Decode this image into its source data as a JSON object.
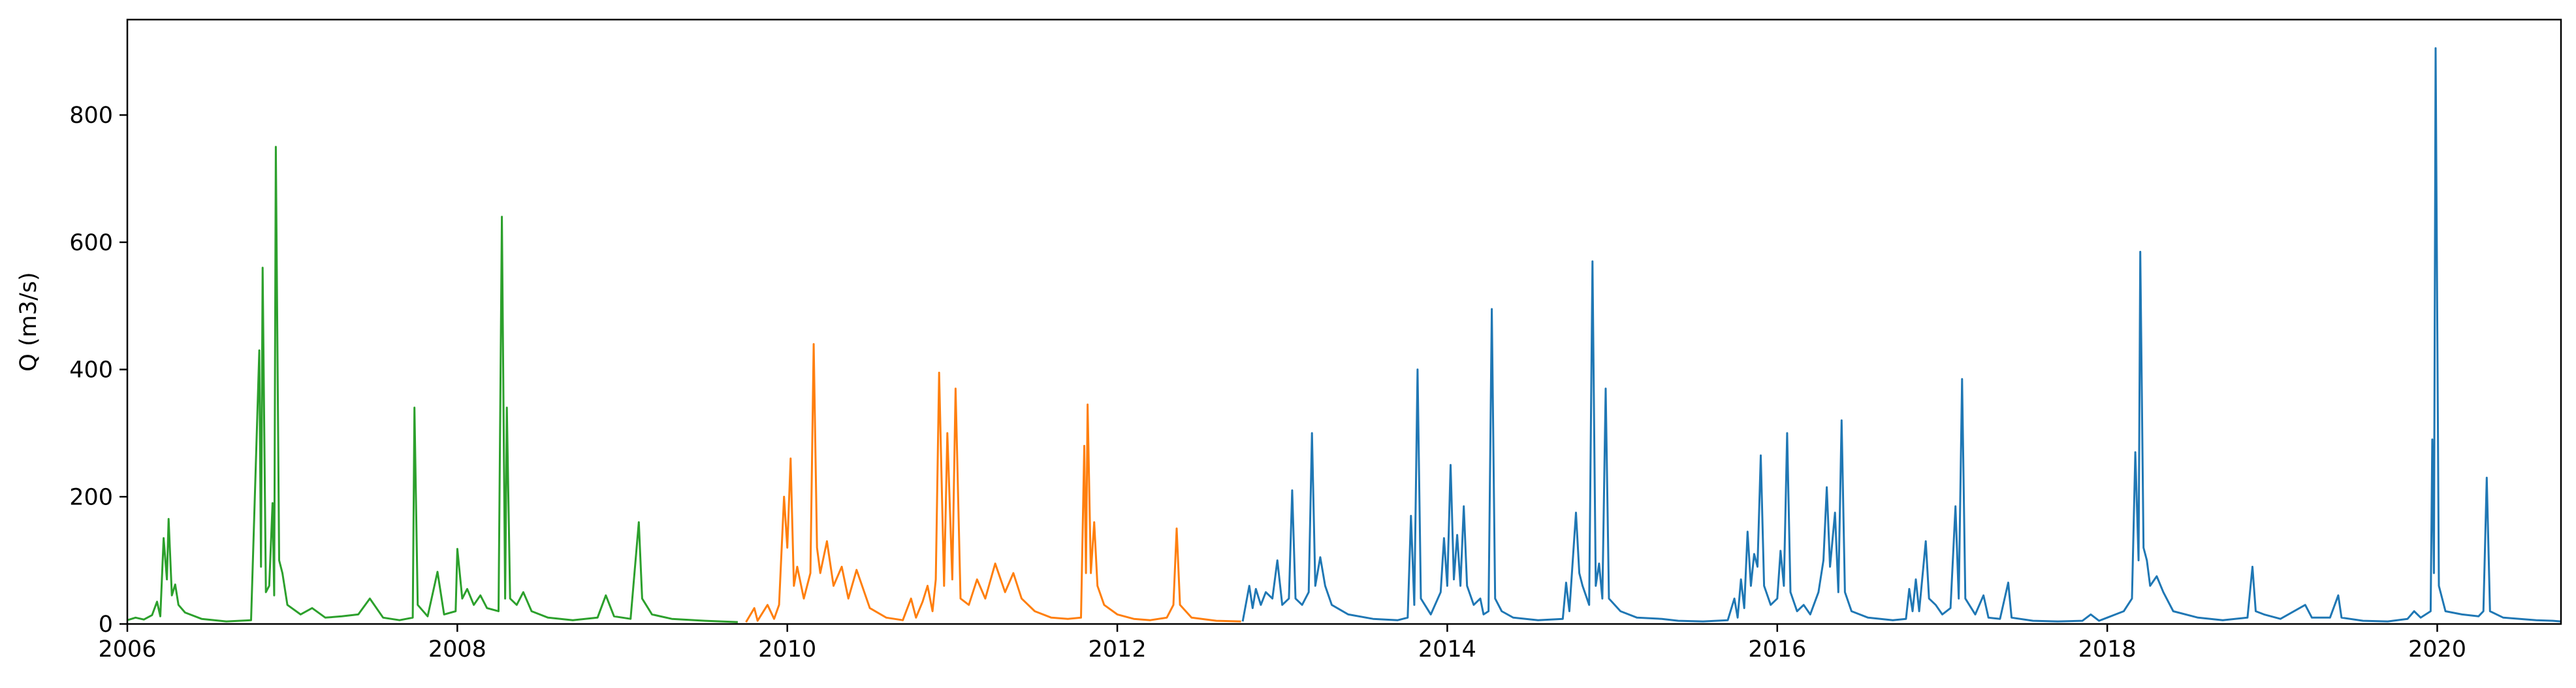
{
  "chart_data": {
    "type": "line",
    "title": "",
    "xlabel": "",
    "ylabel": "Q (m3/s)",
    "xlim": [
      2006.0,
      2020.75
    ],
    "ylim": [
      0,
      950
    ],
    "xticks": [
      2006,
      2008,
      2010,
      2012,
      2014,
      2016,
      2018,
      2020
    ],
    "yticks": [
      0,
      200,
      400,
      600,
      800
    ],
    "grid": false,
    "legend": "none",
    "series": [
      {
        "color": "#2ca02c",
        "points": [
          [
            2006.0,
            6
          ],
          [
            2006.05,
            10
          ],
          [
            2006.1,
            7
          ],
          [
            2006.15,
            14
          ],
          [
            2006.18,
            35
          ],
          [
            2006.2,
            12
          ],
          [
            2006.22,
            135
          ],
          [
            2006.24,
            70
          ],
          [
            2006.25,
            165
          ],
          [
            2006.27,
            45
          ],
          [
            2006.29,
            62
          ],
          [
            2006.31,
            30
          ],
          [
            2006.35,
            18
          ],
          [
            2006.45,
            8
          ],
          [
            2006.6,
            4
          ],
          [
            2006.75,
            6
          ],
          [
            2006.8,
            430
          ],
          [
            2006.81,
            90
          ],
          [
            2006.82,
            560
          ],
          [
            2006.84,
            50
          ],
          [
            2006.86,
            60
          ],
          [
            2006.88,
            190
          ],
          [
            2006.89,
            45
          ],
          [
            2006.9,
            750
          ],
          [
            2006.92,
            100
          ],
          [
            2006.94,
            80
          ],
          [
            2006.97,
            30
          ],
          [
            2007.05,
            15
          ],
          [
            2007.12,
            25
          ],
          [
            2007.2,
            10
          ],
          [
            2007.3,
            12
          ],
          [
            2007.4,
            15
          ],
          [
            2007.47,
            40
          ],
          [
            2007.55,
            10
          ],
          [
            2007.65,
            6
          ],
          [
            2007.73,
            10
          ],
          [
            2007.74,
            340
          ],
          [
            2007.76,
            30
          ],
          [
            2007.82,
            12
          ],
          [
            2007.88,
            82
          ],
          [
            2007.92,
            15
          ],
          [
            2007.99,
            20
          ],
          [
            2008.0,
            118
          ],
          [
            2008.03,
            40
          ],
          [
            2008.06,
            55
          ],
          [
            2008.1,
            30
          ],
          [
            2008.14,
            45
          ],
          [
            2008.18,
            25
          ],
          [
            2008.25,
            20
          ],
          [
            2008.27,
            640
          ],
          [
            2008.29,
            40
          ],
          [
            2008.3,
            340
          ],
          [
            2008.32,
            40
          ],
          [
            2008.36,
            30
          ],
          [
            2008.4,
            50
          ],
          [
            2008.45,
            20
          ],
          [
            2008.55,
            10
          ],
          [
            2008.7,
            6
          ],
          [
            2008.85,
            10
          ],
          [
            2008.9,
            45
          ],
          [
            2008.95,
            12
          ],
          [
            2009.05,
            8
          ],
          [
            2009.1,
            160
          ],
          [
            2009.12,
            40
          ],
          [
            2009.18,
            15
          ],
          [
            2009.3,
            8
          ],
          [
            2009.5,
            5
          ],
          [
            2009.7,
            3
          ]
        ]
      },
      {
        "color": "#ff7f0e",
        "points": [
          [
            2009.75,
            3
          ],
          [
            2009.8,
            25
          ],
          [
            2009.82,
            5
          ],
          [
            2009.88,
            30
          ],
          [
            2009.92,
            8
          ],
          [
            2009.95,
            30
          ],
          [
            2009.98,
            200
          ],
          [
            2010.0,
            120
          ],
          [
            2010.02,
            260
          ],
          [
            2010.04,
            60
          ],
          [
            2010.06,
            90
          ],
          [
            2010.1,
            40
          ],
          [
            2010.14,
            80
          ],
          [
            2010.16,
            440
          ],
          [
            2010.18,
            120
          ],
          [
            2010.2,
            80
          ],
          [
            2010.24,
            130
          ],
          [
            2010.28,
            60
          ],
          [
            2010.33,
            90
          ],
          [
            2010.37,
            40
          ],
          [
            2010.42,
            85
          ],
          [
            2010.5,
            25
          ],
          [
            2010.6,
            10
          ],
          [
            2010.7,
            6
          ],
          [
            2010.75,
            40
          ],
          [
            2010.78,
            10
          ],
          [
            2010.82,
            35
          ],
          [
            2010.85,
            60
          ],
          [
            2010.88,
            20
          ],
          [
            2010.9,
            70
          ],
          [
            2010.92,
            395
          ],
          [
            2010.95,
            60
          ],
          [
            2010.97,
            300
          ],
          [
            2011.0,
            70
          ],
          [
            2011.02,
            370
          ],
          [
            2011.05,
            40
          ],
          [
            2011.1,
            30
          ],
          [
            2011.15,
            70
          ],
          [
            2011.2,
            40
          ],
          [
            2011.26,
            95
          ],
          [
            2011.32,
            50
          ],
          [
            2011.37,
            80
          ],
          [
            2011.42,
            40
          ],
          [
            2011.5,
            20
          ],
          [
            2011.6,
            10
          ],
          [
            2011.7,
            8
          ],
          [
            2011.78,
            10
          ],
          [
            2011.8,
            280
          ],
          [
            2011.81,
            80
          ],
          [
            2011.82,
            345
          ],
          [
            2011.84,
            80
          ],
          [
            2011.86,
            160
          ],
          [
            2011.88,
            60
          ],
          [
            2011.92,
            30
          ],
          [
            2012.0,
            15
          ],
          [
            2012.1,
            8
          ],
          [
            2012.2,
            6
          ],
          [
            2012.3,
            10
          ],
          [
            2012.34,
            30
          ],
          [
            2012.36,
            150
          ],
          [
            2012.38,
            30
          ],
          [
            2012.45,
            10
          ],
          [
            2012.6,
            5
          ],
          [
            2012.75,
            4
          ]
        ]
      },
      {
        "color": "#1f77b4",
        "points": [
          [
            2012.76,
            4
          ],
          [
            2012.8,
            60
          ],
          [
            2012.82,
            25
          ],
          [
            2012.84,
            55
          ],
          [
            2012.87,
            30
          ],
          [
            2012.9,
            50
          ],
          [
            2012.94,
            40
          ],
          [
            2012.97,
            100
          ],
          [
            2013.0,
            30
          ],
          [
            2013.04,
            40
          ],
          [
            2013.06,
            210
          ],
          [
            2013.08,
            40
          ],
          [
            2013.12,
            30
          ],
          [
            2013.16,
            50
          ],
          [
            2013.18,
            300
          ],
          [
            2013.2,
            60
          ],
          [
            2013.23,
            105
          ],
          [
            2013.26,
            60
          ],
          [
            2013.3,
            30
          ],
          [
            2013.4,
            15
          ],
          [
            2013.55,
            8
          ],
          [
            2013.7,
            6
          ],
          [
            2013.76,
            10
          ],
          [
            2013.78,
            170
          ],
          [
            2013.8,
            30
          ],
          [
            2013.82,
            400
          ],
          [
            2013.84,
            40
          ],
          [
            2013.9,
            15
          ],
          [
            2013.96,
            50
          ],
          [
            2013.98,
            135
          ],
          [
            2014.0,
            60
          ],
          [
            2014.02,
            250
          ],
          [
            2014.04,
            70
          ],
          [
            2014.06,
            140
          ],
          [
            2014.08,
            60
          ],
          [
            2014.1,
            185
          ],
          [
            2014.12,
            60
          ],
          [
            2014.16,
            30
          ],
          [
            2014.2,
            40
          ],
          [
            2014.22,
            15
          ],
          [
            2014.25,
            20
          ],
          [
            2014.27,
            495
          ],
          [
            2014.29,
            40
          ],
          [
            2014.33,
            20
          ],
          [
            2014.4,
            10
          ],
          [
            2014.55,
            6
          ],
          [
            2014.7,
            8
          ],
          [
            2014.72,
            65
          ],
          [
            2014.74,
            20
          ],
          [
            2014.78,
            175
          ],
          [
            2014.8,
            80
          ],
          [
            2014.82,
            60
          ],
          [
            2014.86,
            30
          ],
          [
            2014.88,
            570
          ],
          [
            2014.9,
            60
          ],
          [
            2014.92,
            95
          ],
          [
            2014.94,
            40
          ],
          [
            2014.96,
            370
          ],
          [
            2014.98,
            40
          ],
          [
            2015.05,
            20
          ],
          [
            2015.15,
            10
          ],
          [
            2015.3,
            8
          ],
          [
            2015.4,
            5
          ],
          [
            2015.55,
            4
          ],
          [
            2015.7,
            6
          ],
          [
            2015.74,
            40
          ],
          [
            2015.76,
            10
          ],
          [
            2015.78,
            70
          ],
          [
            2015.8,
            25
          ],
          [
            2015.82,
            145
          ],
          [
            2015.84,
            60
          ],
          [
            2015.86,
            110
          ],
          [
            2015.88,
            90
          ],
          [
            2015.9,
            265
          ],
          [
            2015.92,
            60
          ],
          [
            2015.96,
            30
          ],
          [
            2016.0,
            40
          ],
          [
            2016.02,
            115
          ],
          [
            2016.04,
            60
          ],
          [
            2016.06,
            300
          ],
          [
            2016.08,
            50
          ],
          [
            2016.12,
            20
          ],
          [
            2016.16,
            30
          ],
          [
            2016.2,
            15
          ],
          [
            2016.25,
            50
          ],
          [
            2016.28,
            100
          ],
          [
            2016.3,
            215
          ],
          [
            2016.32,
            90
          ],
          [
            2016.35,
            175
          ],
          [
            2016.37,
            50
          ],
          [
            2016.39,
            320
          ],
          [
            2016.41,
            50
          ],
          [
            2016.45,
            20
          ],
          [
            2016.55,
            10
          ],
          [
            2016.7,
            6
          ],
          [
            2016.78,
            8
          ],
          [
            2016.8,
            55
          ],
          [
            2016.82,
            20
          ],
          [
            2016.84,
            70
          ],
          [
            2016.86,
            20
          ],
          [
            2016.9,
            130
          ],
          [
            2016.92,
            40
          ],
          [
            2016.96,
            30
          ],
          [
            2017.0,
            15
          ],
          [
            2017.05,
            25
          ],
          [
            2017.08,
            185
          ],
          [
            2017.1,
            40
          ],
          [
            2017.12,
            385
          ],
          [
            2017.14,
            40
          ],
          [
            2017.2,
            15
          ],
          [
            2017.25,
            45
          ],
          [
            2017.28,
            10
          ],
          [
            2017.35,
            8
          ],
          [
            2017.4,
            65
          ],
          [
            2017.42,
            10
          ],
          [
            2017.55,
            5
          ],
          [
            2017.7,
            4
          ],
          [
            2017.85,
            5
          ],
          [
            2017.9,
            15
          ],
          [
            2017.95,
            5
          ],
          [
            2018.0,
            10
          ],
          [
            2018.05,
            15
          ],
          [
            2018.1,
            20
          ],
          [
            2018.15,
            40
          ],
          [
            2018.17,
            270
          ],
          [
            2018.19,
            100
          ],
          [
            2018.2,
            585
          ],
          [
            2018.22,
            120
          ],
          [
            2018.24,
            100
          ],
          [
            2018.26,
            60
          ],
          [
            2018.3,
            75
          ],
          [
            2018.34,
            50
          ],
          [
            2018.4,
            20
          ],
          [
            2018.55,
            10
          ],
          [
            2018.7,
            6
          ],
          [
            2018.85,
            10
          ],
          [
            2018.88,
            90
          ],
          [
            2018.9,
            20
          ],
          [
            2018.95,
            15
          ],
          [
            2019.05,
            8
          ],
          [
            2019.2,
            30
          ],
          [
            2019.24,
            10
          ],
          [
            2019.35,
            10
          ],
          [
            2019.4,
            45
          ],
          [
            2019.42,
            10
          ],
          [
            2019.55,
            5
          ],
          [
            2019.7,
            4
          ],
          [
            2019.82,
            8
          ],
          [
            2019.86,
            20
          ],
          [
            2019.9,
            10
          ],
          [
            2019.96,
            20
          ],
          [
            2019.97,
            290
          ],
          [
            2019.98,
            80
          ],
          [
            2019.99,
            905
          ],
          [
            2020.01,
            60
          ],
          [
            2020.05,
            20
          ],
          [
            2020.15,
            15
          ],
          [
            2020.25,
            12
          ],
          [
            2020.28,
            20
          ],
          [
            2020.3,
            230
          ],
          [
            2020.32,
            20
          ],
          [
            2020.4,
            10
          ],
          [
            2020.5,
            8
          ],
          [
            2020.6,
            6
          ],
          [
            2020.7,
            5
          ],
          [
            2020.75,
            4
          ]
        ]
      }
    ]
  }
}
